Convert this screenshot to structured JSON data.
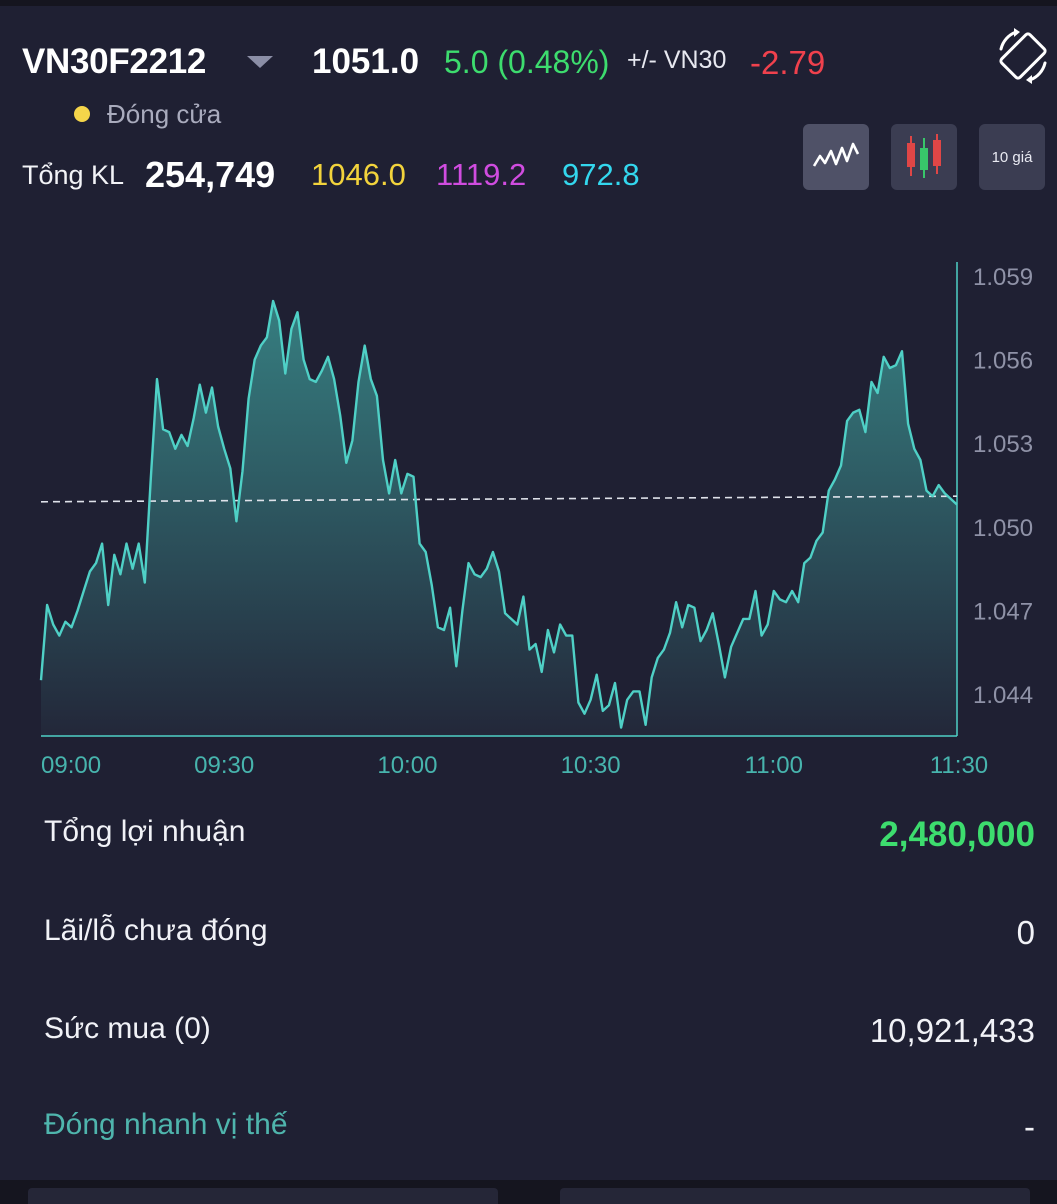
{
  "header": {
    "symbol": "VN30F2212",
    "price": "1051.0",
    "change": "5.0 (0.48%)",
    "basis_label": "+/- VN30",
    "basis_value": "-2.79",
    "status": "Đóng cửa",
    "total_volume_label": "Tổng KL",
    "total_volume": "254,749",
    "reference_price": "1046.0",
    "ceiling_price": "1119.2",
    "floor_price": "972.8"
  },
  "chart_modes": [
    {
      "name": "line-chart",
      "label": "",
      "active": true
    },
    {
      "name": "candlestick",
      "label": "",
      "active": false
    },
    {
      "name": "ten-prices",
      "label": "10 giá",
      "active": false
    }
  ],
  "colors": {
    "background": "#1f2033",
    "up": "#3ddc6e",
    "down": "#f0414d",
    "reference": "#f2d33c",
    "ceiling": "#d04ce0",
    "floor": "#33d7ee",
    "line": "#4fd0c6"
  },
  "chart_data": {
    "type": "area",
    "title": "",
    "xlabel": "",
    "ylabel": "",
    "x_ticks": [
      "09:00",
      "09:30",
      "10:00",
      "10:30",
      "11:00",
      "11:30"
    ],
    "y_ticks": [
      "1.059",
      "1.056",
      "1.053",
      "1.050",
      "1.047",
      "1.044"
    ],
    "ylim": [
      1.0425,
      1.0595
    ],
    "reference_level": 1.0509,
    "reference_level_end": 1.0511,
    "series": [
      {
        "x_minutes": [
          0,
          1,
          2,
          3,
          4,
          5,
          6,
          7,
          8,
          9,
          10,
          11,
          12,
          13,
          14,
          15,
          16,
          17,
          18,
          19,
          20,
          21,
          22,
          23,
          24,
          25,
          26,
          27,
          28,
          29,
          30,
          31,
          32,
          33,
          34,
          35,
          36,
          37,
          38,
          39,
          40,
          41,
          42,
          43,
          44,
          45,
          46,
          47,
          48,
          49,
          50,
          51,
          52,
          53,
          54,
          55,
          56,
          57,
          58,
          59,
          60,
          61,
          62,
          63,
          64,
          65,
          66,
          67,
          68,
          69,
          70,
          71,
          72,
          73,
          74,
          75,
          76,
          77,
          78,
          79,
          80,
          81,
          82,
          83,
          84,
          85,
          86,
          87,
          88,
          89,
          90,
          91,
          92,
          93,
          94,
          95,
          96,
          97,
          98,
          99,
          100,
          101,
          102,
          103,
          104,
          105,
          106,
          107,
          108,
          109,
          110,
          111,
          112,
          113,
          114,
          115,
          116,
          117,
          118,
          119,
          120,
          121,
          122,
          123,
          124,
          125,
          126,
          127,
          128,
          129,
          130,
          131,
          132,
          133,
          134,
          135,
          136,
          137,
          138,
          139,
          140,
          141,
          142,
          143,
          144,
          145,
          146,
          147,
          148,
          149,
          150
        ],
        "values": [
          1.0445,
          1.0472,
          1.0465,
          1.0461,
          1.0466,
          1.0464,
          1.047,
          1.0477,
          1.0484,
          1.0487,
          1.0494,
          1.0472,
          1.049,
          1.0483,
          1.0494,
          1.0485,
          1.0494,
          1.048,
          1.0518,
          1.0553,
          1.0535,
          1.0534,
          1.0528,
          1.0533,
          1.0529,
          1.0539,
          1.0551,
          1.0541,
          1.055,
          1.0536,
          1.0528,
          1.0521,
          1.0502,
          1.052,
          1.0546,
          1.056,
          1.0565,
          1.0568,
          1.0581,
          1.0574,
          1.0555,
          1.0571,
          1.0577,
          1.056,
          1.0553,
          1.0552,
          1.0556,
          1.0561,
          1.0553,
          1.054,
          1.0523,
          1.0531,
          1.0552,
          1.0565,
          1.0553,
          1.0547,
          1.0524,
          1.0512,
          1.0524,
          1.0512,
          1.0519,
          1.0518,
          1.0494,
          1.0491,
          1.0479,
          1.0464,
          1.0463,
          1.0471,
          1.045,
          1.047,
          1.0487,
          1.0483,
          1.0482,
          1.0485,
          1.0491,
          1.0484,
          1.0469,
          1.0467,
          1.0465,
          1.0475,
          1.0456,
          1.0458,
          1.0448,
          1.0463,
          1.0455,
          1.0465,
          1.0461,
          1.0461,
          1.0437,
          1.0433,
          1.0438,
          1.0447,
          1.0434,
          1.0436,
          1.0444,
          1.0428,
          1.0438,
          1.0441,
          1.0441,
          1.0429,
          1.0446,
          1.0453,
          1.0456,
          1.0462,
          1.0473,
          1.0464,
          1.0472,
          1.0471,
          1.0459,
          1.0463,
          1.0469,
          1.0458,
          1.0446,
          1.0457,
          1.0462,
          1.0467,
          1.0467,
          1.0477,
          1.0461,
          1.0465,
          1.0477,
          1.0474,
          1.0473,
          1.0477,
          1.0473,
          1.0487,
          1.0489,
          1.0495,
          1.0498,
          1.0513,
          1.0517,
          1.0522,
          1.0538,
          1.0541,
          1.0542,
          1.0534,
          1.0552,
          1.0548,
          1.0561,
          1.0557,
          1.0558,
          1.0563,
          1.0537,
          1.0528,
          1.0524,
          1.0513,
          1.0511,
          1.0515,
          1.0512,
          1.051,
          1.0508
        ]
      }
    ]
  },
  "summary": {
    "rows": [
      {
        "label": "Tổng lợi nhuận",
        "value": "2,480,000"
      },
      {
        "label": "Lãi/lỗ chưa đóng",
        "value": "0"
      },
      {
        "label": "Sức mua (0)",
        "value": "10,921,433"
      },
      {
        "label": "Đóng nhanh vị thế",
        "value": "-"
      }
    ]
  }
}
